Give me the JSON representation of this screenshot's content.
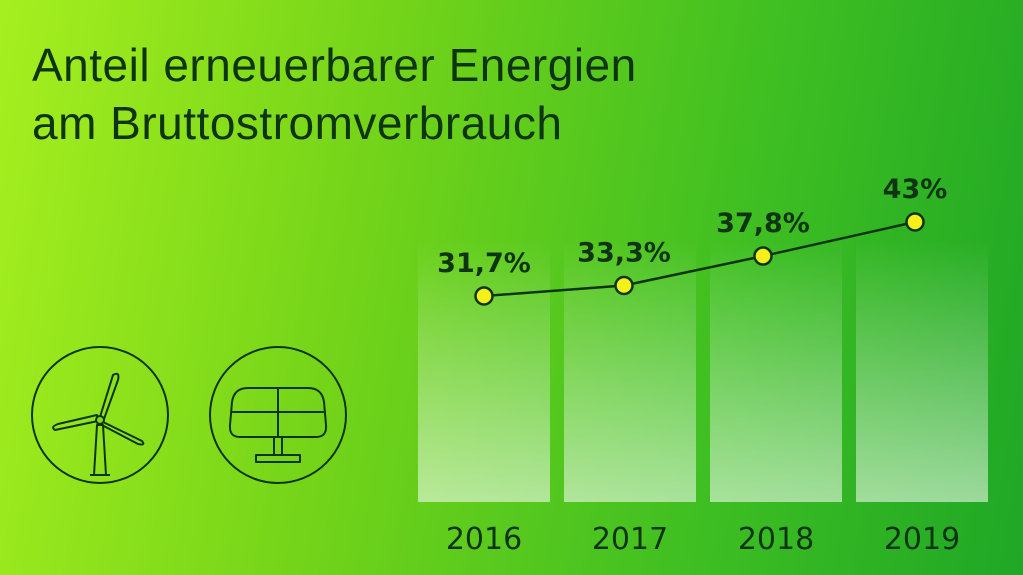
{
  "header": {
    "title_line1": "Anteil erneuerbarer Energien",
    "title_line2": "am Bruttostromverbrauch"
  },
  "icons": [
    "wind-turbine-icon",
    "solar-panel-icon"
  ],
  "colors": {
    "text": "#0f3412",
    "point_fill": "#f5f01a",
    "bar_fill": "#ffffff"
  },
  "chart_data": {
    "type": "line",
    "x": [
      "2016",
      "2017",
      "2018",
      "2019"
    ],
    "series": [
      {
        "values": [
          31.7,
          33.3,
          37.8,
          43
        ],
        "labels": [
          "31,7%",
          "33,3%",
          "37,8%",
          "43%"
        ]
      }
    ],
    "title": "Anteil erneuerbarer Energien am Bruttostromverbrauch",
    "xlabel": "",
    "ylabel": "",
    "grid": false,
    "legend": "none"
  }
}
